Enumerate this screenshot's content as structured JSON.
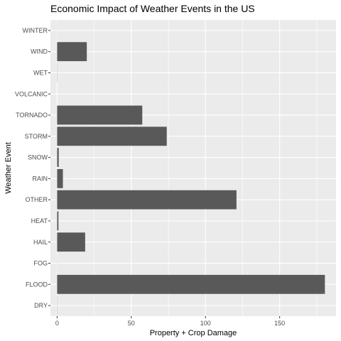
{
  "chart_data": {
    "type": "bar",
    "orientation": "horizontal",
    "title": "Economic Impact of Weather Events in the US",
    "xlabel": "Property + Crop Damage",
    "ylabel": "Weather Event",
    "categories": [
      "DRY",
      "FLOOD",
      "FOG",
      "HAIL",
      "HEAT",
      "OTHER",
      "RAIN",
      "SNOW",
      "STORM",
      "TORNADO",
      "VOLCANIC",
      "WET",
      "WIND",
      "WINTER"
    ],
    "values": [
      0.1,
      180.5,
      0.05,
      18.9,
      0.9,
      120.9,
      3.9,
      1.1,
      73.9,
      57.4,
      0.0,
      0.1,
      20.0,
      0.05
    ],
    "xlim": [
      -4.5,
      188
    ],
    "xticks": [
      0,
      50,
      100,
      150
    ],
    "xtick_labels": [
      "0",
      "50",
      "100",
      "150"
    ],
    "grid": true,
    "colors": {
      "panel_background": "#ebebeb",
      "grid_major": "#ffffff",
      "bar_fill": "#595959",
      "tick_color": "#333333",
      "tick_label_color": "#4d4d4d"
    }
  }
}
